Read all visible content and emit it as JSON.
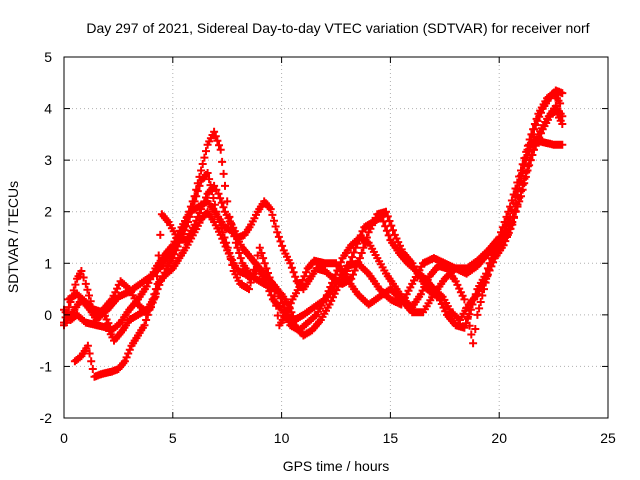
{
  "chart_data": {
    "type": "scatter",
    "title": "Day 297 of 2021, Sidereal Day-to-day VTEC variation (SDTVAR) for receiver norf",
    "xlabel": "GPS time / hours",
    "ylabel": "SDTVAR / TECUs",
    "xlim": [
      0,
      25
    ],
    "ylim": [
      -2,
      5
    ],
    "x_ticks": [
      "0",
      "5",
      "10",
      "15",
      "20",
      "25"
    ],
    "y_ticks": [
      "-2",
      "-1",
      "0",
      "1",
      "2",
      "3",
      "4",
      "5"
    ],
    "grid": true,
    "legend": "none",
    "marker": "+",
    "series": [
      {
        "name": "trace-1",
        "color": "#ff0000",
        "points": [
          [
            0.0,
            -0.15
          ],
          [
            0.3,
            0.25
          ],
          [
            0.6,
            0.7
          ],
          [
            0.8,
            0.85
          ],
          [
            1.0,
            0.6
          ],
          [
            1.3,
            0.15
          ],
          [
            1.6,
            -0.05
          ],
          [
            2.0,
            0.1
          ],
          [
            2.5,
            0.35
          ],
          [
            3.0,
            0.45
          ],
          [
            3.5,
            0.6
          ],
          [
            4.0,
            0.75
          ],
          [
            4.5,
            0.95
          ],
          [
            5.0,
            1.25
          ],
          [
            5.5,
            1.7
          ],
          [
            6.0,
            2.3
          ],
          [
            6.3,
            2.8
          ],
          [
            6.6,
            3.3
          ],
          [
            6.9,
            3.55
          ],
          [
            7.2,
            3.2
          ],
          [
            7.4,
            2.5
          ],
          [
            7.6,
            1.9
          ],
          [
            7.9,
            1.4
          ],
          [
            8.2,
            1.0
          ],
          [
            8.5,
            0.8
          ],
          [
            8.8,
            0.7
          ],
          [
            9.2,
            0.6
          ],
          [
            9.7,
            0.5
          ],
          [
            10.0,
            0.4
          ],
          [
            10.3,
            0.2
          ],
          [
            10.6,
            -0.1
          ],
          [
            11.0,
            0.0
          ],
          [
            11.5,
            0.15
          ],
          [
            12.0,
            0.3
          ],
          [
            12.5,
            0.6
          ],
          [
            13.0,
            0.95
          ],
          [
            13.5,
            1.0
          ],
          [
            14.0,
            0.8
          ],
          [
            14.5,
            0.5
          ],
          [
            15.0,
            0.3
          ],
          [
            15.5,
            0.2
          ],
          [
            16.0,
            0.6
          ],
          [
            16.5,
            1.0
          ],
          [
            17.0,
            1.1
          ],
          [
            17.5,
            1.0
          ],
          [
            18.0,
            0.9
          ],
          [
            18.5,
            0.8
          ],
          [
            19.0,
            0.95
          ],
          [
            19.5,
            1.2
          ],
          [
            20.0,
            1.35
          ],
          [
            20.5,
            1.9
          ],
          [
            21.0,
            2.7
          ],
          [
            21.3,
            3.1
          ],
          [
            21.6,
            3.4
          ],
          [
            22.0,
            3.35
          ],
          [
            22.5,
            3.3
          ],
          [
            22.9,
            3.3
          ]
        ]
      },
      {
        "name": "trace-2",
        "color": "#ff0000",
        "points": [
          [
            0.0,
            -0.2
          ],
          [
            0.4,
            0.05
          ],
          [
            0.8,
            0.3
          ],
          [
            1.2,
            0.1
          ],
          [
            1.5,
            -0.1
          ],
          [
            1.8,
            0.1
          ],
          [
            2.2,
            0.3
          ],
          [
            2.6,
            0.65
          ],
          [
            3.0,
            0.5
          ],
          [
            3.4,
            0.2
          ],
          [
            3.8,
            0.05
          ],
          [
            4.0,
            0.15
          ],
          [
            4.3,
            0.5
          ],
          [
            4.7,
            0.9
          ],
          [
            5.0,
            1.1
          ],
          [
            5.3,
            1.4
          ],
          [
            5.7,
            1.8
          ],
          [
            6.0,
            2.2
          ],
          [
            6.3,
            2.6
          ],
          [
            6.6,
            2.75
          ],
          [
            6.8,
            2.4
          ],
          [
            7.0,
            2.0
          ],
          [
            7.3,
            1.6
          ],
          [
            7.6,
            1.2
          ],
          [
            7.8,
            0.85
          ],
          [
            8.1,
            0.6
          ],
          [
            8.5,
            0.5
          ],
          [
            8.8,
            1.0
          ],
          [
            9.0,
            1.3
          ],
          [
            9.3,
            0.9
          ],
          [
            9.6,
            0.55
          ],
          [
            9.9,
            -0.2
          ],
          [
            10.2,
            0.0
          ],
          [
            10.5,
            0.3
          ],
          [
            10.9,
            0.6
          ],
          [
            11.2,
            0.9
          ],
          [
            11.5,
            1.05
          ],
          [
            12.0,
            1.0
          ],
          [
            12.5,
            1.0
          ],
          [
            13.0,
            0.7
          ],
          [
            13.5,
            0.4
          ],
          [
            14.0,
            0.2
          ],
          [
            14.5,
            0.35
          ],
          [
            15.0,
            0.5
          ],
          [
            15.5,
            0.3
          ],
          [
            16.0,
            0.05
          ],
          [
            16.5,
            0.05
          ],
          [
            17.0,
            0.4
          ],
          [
            17.5,
            0.7
          ],
          [
            18.0,
            0.9
          ],
          [
            18.5,
            0.9
          ],
          [
            19.0,
            1.05
          ],
          [
            19.5,
            1.25
          ],
          [
            20.0,
            1.5
          ],
          [
            20.5,
            2.1
          ],
          [
            21.0,
            2.8
          ],
          [
            21.4,
            3.4
          ],
          [
            21.8,
            3.9
          ],
          [
            22.2,
            4.2
          ],
          [
            22.5,
            4.3
          ],
          [
            22.8,
            4.1
          ]
        ]
      },
      {
        "name": "trace-3",
        "color": "#ff0000",
        "points": [
          [
            0.5,
            -0.9
          ],
          [
            0.8,
            -0.8
          ],
          [
            1.1,
            -0.6
          ],
          [
            1.4,
            -1.2
          ],
          [
            1.7,
            -1.15
          ],
          [
            2.2,
            -1.1
          ],
          [
            2.5,
            -1.05
          ],
          [
            2.8,
            -0.9
          ],
          [
            3.1,
            -0.6
          ],
          [
            3.4,
            -0.4
          ],
          [
            3.7,
            -0.2
          ],
          [
            4.0,
            0.2
          ],
          [
            4.3,
            0.6
          ],
          [
            4.6,
            0.75
          ],
          [
            5.0,
            0.9
          ],
          [
            5.3,
            1.1
          ],
          [
            5.6,
            1.3
          ],
          [
            6.0,
            1.6
          ],
          [
            6.3,
            1.85
          ],
          [
            6.6,
            2.0
          ],
          [
            6.9,
            1.8
          ],
          [
            7.2,
            1.55
          ],
          [
            7.5,
            1.25
          ],
          [
            7.8,
            1.0
          ],
          [
            8.0,
            0.85
          ],
          [
            8.3,
            0.8
          ],
          [
            8.6,
            0.7
          ],
          [
            8.9,
            0.9
          ],
          [
            9.2,
            0.7
          ],
          [
            9.6,
            0.3
          ],
          [
            10.0,
            0.1
          ],
          [
            10.4,
            -0.2
          ],
          [
            10.8,
            -0.3
          ],
          [
            11.2,
            -0.15
          ],
          [
            11.6,
            0.0
          ],
          [
            12.0,
            0.3
          ],
          [
            12.4,
            0.7
          ],
          [
            12.8,
            1.1
          ],
          [
            13.2,
            1.35
          ],
          [
            13.6,
            1.5
          ],
          [
            14.0,
            1.4
          ],
          [
            14.4,
            1.1
          ],
          [
            14.8,
            0.8
          ],
          [
            15.2,
            0.55
          ],
          [
            15.6,
            0.3
          ],
          [
            16.0,
            0.15
          ],
          [
            16.4,
            0.4
          ],
          [
            16.8,
            0.75
          ],
          [
            17.2,
            0.95
          ],
          [
            17.6,
            0.9
          ],
          [
            18.0,
            0.65
          ],
          [
            18.4,
            0.3
          ],
          [
            18.8,
            -0.55
          ],
          [
            19.0,
            0.0
          ],
          [
            19.3,
            0.5
          ],
          [
            19.6,
            1.0
          ],
          [
            20.0,
            1.4
          ],
          [
            20.4,
            1.55
          ],
          [
            20.7,
            2.0
          ],
          [
            21.0,
            2.6
          ],
          [
            21.3,
            3.2
          ],
          [
            21.6,
            3.6
          ],
          [
            22.0,
            4.0
          ],
          [
            22.3,
            4.2
          ],
          [
            22.6,
            4.35
          ],
          [
            22.9,
            4.3
          ]
        ]
      },
      {
        "name": "trace-4",
        "color": "#ff0000",
        "points": [
          [
            0.0,
            0.1
          ],
          [
            0.3,
            -0.1
          ],
          [
            0.6,
            0.0
          ],
          [
            1.0,
            -0.15
          ],
          [
            1.5,
            -0.2
          ],
          [
            2.0,
            -0.25
          ],
          [
            2.3,
            -0.5
          ],
          [
            2.7,
            -0.3
          ],
          [
            3.0,
            -0.1
          ],
          [
            3.4,
            0.0
          ],
          [
            3.8,
            0.1
          ],
          [
            4.2,
            0.35
          ],
          [
            4.5,
            1.95
          ],
          [
            4.8,
            1.8
          ],
          [
            5.2,
            1.5
          ],
          [
            5.6,
            1.45
          ],
          [
            6.0,
            1.75
          ],
          [
            6.3,
            2.05
          ],
          [
            6.6,
            2.35
          ],
          [
            6.9,
            2.5
          ],
          [
            7.1,
            2.35
          ],
          [
            7.4,
            2.0
          ],
          [
            7.7,
            1.75
          ],
          [
            8.0,
            1.5
          ],
          [
            8.3,
            1.55
          ],
          [
            8.6,
            1.75
          ],
          [
            8.9,
            2.0
          ],
          [
            9.2,
            2.2
          ],
          [
            9.5,
            2.05
          ],
          [
            9.8,
            1.6
          ],
          [
            10.1,
            1.25
          ],
          [
            10.4,
            1.0
          ],
          [
            10.7,
            0.65
          ],
          [
            11.0,
            0.5
          ],
          [
            11.3,
            0.7
          ],
          [
            11.6,
            0.9
          ],
          [
            12.0,
            0.85
          ],
          [
            12.4,
            0.7
          ],
          [
            12.8,
            0.6
          ],
          [
            13.2,
            0.7
          ],
          [
            13.6,
            1.1
          ],
          [
            14.0,
            1.6
          ],
          [
            14.4,
            1.95
          ],
          [
            14.8,
            2.0
          ],
          [
            15.2,
            1.55
          ],
          [
            15.6,
            1.2
          ],
          [
            16.0,
            1.0
          ],
          [
            16.4,
            0.7
          ],
          [
            16.8,
            0.45
          ],
          [
            17.2,
            0.35
          ],
          [
            17.6,
            0.0
          ],
          [
            18.0,
            -0.2
          ],
          [
            18.4,
            -0.25
          ],
          [
            18.7,
            0.1
          ],
          [
            19.0,
            0.5
          ],
          [
            19.4,
            0.8
          ],
          [
            19.8,
            1.3
          ],
          [
            20.2,
            1.5
          ],
          [
            20.6,
            1.8
          ],
          [
            21.0,
            2.3
          ],
          [
            21.3,
            2.8
          ],
          [
            21.6,
            3.2
          ],
          [
            22.0,
            3.6
          ],
          [
            22.4,
            3.9
          ],
          [
            22.6,
            3.95
          ],
          [
            22.9,
            3.7
          ]
        ]
      },
      {
        "name": "trace-5",
        "color": "#ff0000",
        "points": [
          [
            0.2,
            0.3
          ],
          [
            0.6,
            0.4
          ],
          [
            1.0,
            0.25
          ],
          [
            1.4,
            0.1
          ],
          [
            1.8,
            0.05
          ],
          [
            2.2,
            -0.3
          ],
          [
            2.6,
            -0.15
          ],
          [
            3.0,
            0.1
          ],
          [
            3.4,
            0.3
          ],
          [
            3.8,
            0.55
          ],
          [
            4.2,
            0.9
          ],
          [
            4.6,
            1.15
          ],
          [
            5.0,
            1.35
          ],
          [
            5.4,
            1.7
          ],
          [
            5.8,
            2.0
          ],
          [
            6.2,
            2.1
          ],
          [
            6.6,
            2.2
          ],
          [
            7.0,
            1.95
          ],
          [
            7.4,
            1.7
          ],
          [
            7.8,
            1.6
          ],
          [
            8.2,
            1.3
          ],
          [
            8.6,
            1.1
          ],
          [
            9.0,
            0.9
          ],
          [
            9.4,
            0.7
          ],
          [
            9.8,
            0.5
          ],
          [
            10.2,
            0.05
          ],
          [
            10.6,
            -0.2
          ],
          [
            11.0,
            -0.4
          ],
          [
            11.4,
            -0.3
          ],
          [
            11.8,
            -0.1
          ],
          [
            12.2,
            0.2
          ],
          [
            12.6,
            0.55
          ],
          [
            13.0,
            0.85
          ],
          [
            13.4,
            1.3
          ],
          [
            13.8,
            1.7
          ],
          [
            14.2,
            1.8
          ],
          [
            14.6,
            1.9
          ],
          [
            15.0,
            1.45
          ],
          [
            15.4,
            1.2
          ],
          [
            15.8,
            1.0
          ],
          [
            16.2,
            0.85
          ],
          [
            16.6,
            0.7
          ],
          [
            17.0,
            0.5
          ],
          [
            17.4,
            0.35
          ],
          [
            17.8,
            0.05
          ],
          [
            18.2,
            -0.1
          ],
          [
            18.6,
            0.2
          ],
          [
            19.0,
            0.4
          ],
          [
            19.4,
            0.7
          ],
          [
            19.8,
            1.1
          ],
          [
            20.2,
            1.35
          ],
          [
            20.6,
            1.75
          ],
          [
            21.0,
            2.4
          ],
          [
            21.4,
            3.0
          ],
          [
            21.8,
            3.5
          ],
          [
            22.2,
            3.8
          ],
          [
            22.6,
            4.05
          ],
          [
            22.9,
            3.85
          ]
        ]
      }
    ]
  }
}
